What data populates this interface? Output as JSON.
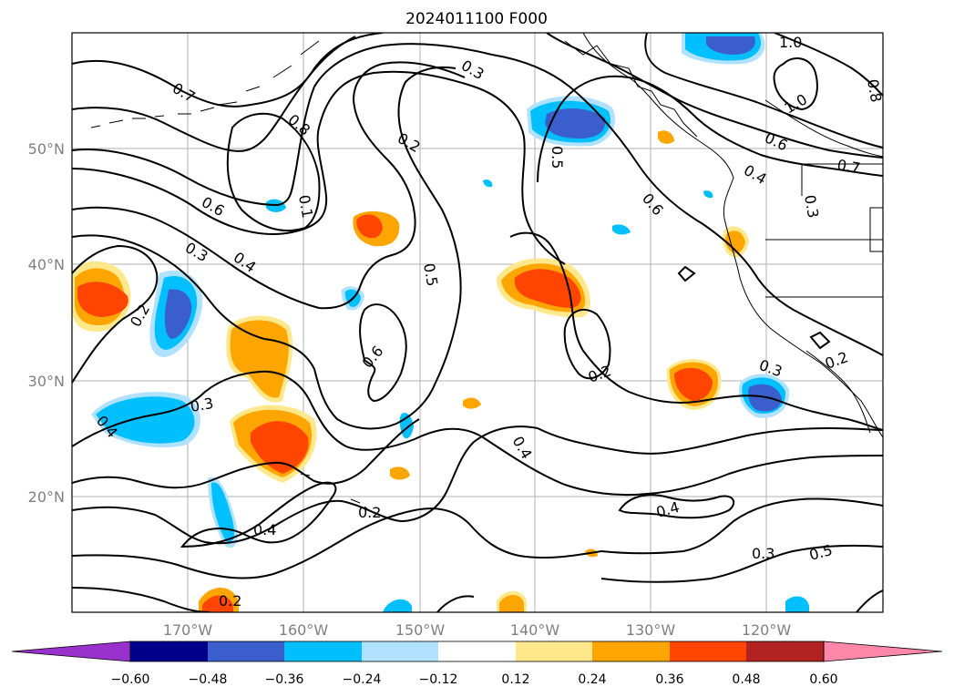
{
  "title": "2024011100 F000",
  "lat_labels": [
    "50°N",
    "40°N",
    "30°N",
    "20°N"
  ],
  "lon_labels": [
    "170°W",
    "160°W",
    "150°W",
    "140°W",
    "130°W",
    "120°W"
  ],
  "contour_labels": [
    "0.7",
    "0.8",
    "0.3",
    "0.2",
    "1.0",
    "0.8",
    "1.0",
    "0.6",
    "0.7",
    "0.4",
    "0.3",
    "0.5",
    "0.6",
    "0.6",
    "0.1",
    "0.3",
    "0.4",
    "0.2",
    "0.5",
    "0.6",
    "0.3",
    "0.4",
    "0.2",
    "0.2",
    "0.4",
    "0.4",
    "0.4",
    "0.3",
    "0.5",
    "0.2",
    "0.3",
    "0.2"
  ],
  "colorbar": {
    "ticks": [
      "−0.60",
      "−0.48",
      "−0.36",
      "−0.24",
      "−0.12",
      "0.12",
      "0.24",
      "0.36",
      "0.48",
      "0.60"
    ],
    "colors": [
      "#9932cc",
      "#00008b",
      "#3a5fcd",
      "#00bfff",
      "#b0e2ff",
      "#ffffff",
      "#ffe88c",
      "#ffa500",
      "#ff4500",
      "#b22222",
      "#ff88aa"
    ]
  }
}
